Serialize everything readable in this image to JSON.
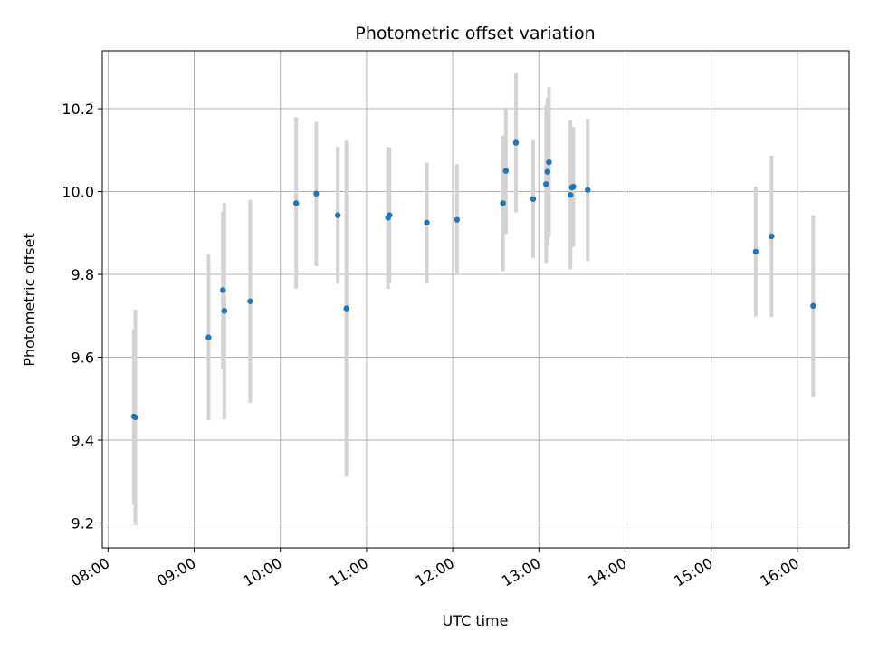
{
  "chart_data": {
    "type": "scatter",
    "title": "Photometric offset variation",
    "xlabel": "UTC time",
    "ylabel": "Photometric offset",
    "x_tick_labels": [
      "08:00",
      "09:00",
      "10:00",
      "11:00",
      "12:00",
      "13:00",
      "14:00",
      "15:00",
      "16:00"
    ],
    "y_tick_labels": [
      "9.2",
      "9.4",
      "9.6",
      "9.8",
      "10.0",
      "10.2"
    ],
    "xlim": [
      "07:56",
      "16:36"
    ],
    "ylim": [
      9.14,
      10.34
    ],
    "grid": true,
    "colors": {
      "marker": "#1f77b4",
      "errorbar": "#d3d3d3",
      "grid": "#b0b0b0"
    },
    "points": [
      {
        "x": "08:18",
        "y": 9.457,
        "ylo": 9.245,
        "yhi": 9.668
      },
      {
        "x": "08:19",
        "y": 9.455,
        "ylo": 9.195,
        "yhi": 9.715
      },
      {
        "x": "09:10",
        "y": 9.648,
        "ylo": 9.448,
        "yhi": 9.848
      },
      {
        "x": "09:20",
        "y": 9.762,
        "ylo": 9.57,
        "yhi": 9.952
      },
      {
        "x": "09:21",
        "y": 9.712,
        "ylo": 9.45,
        "yhi": 9.973
      },
      {
        "x": "09:39",
        "y": 9.735,
        "ylo": 9.49,
        "yhi": 9.98
      },
      {
        "x": "10:11",
        "y": 9.972,
        "ylo": 9.765,
        "yhi": 10.18
      },
      {
        "x": "10:25",
        "y": 9.995,
        "ylo": 9.82,
        "yhi": 10.168
      },
      {
        "x": "10:40",
        "y": 9.943,
        "ylo": 9.778,
        "yhi": 10.108
      },
      {
        "x": "10:46",
        "y": 9.718,
        "ylo": 9.312,
        "yhi": 10.123
      },
      {
        "x": "11:15",
        "y": 9.937,
        "ylo": 9.765,
        "yhi": 10.108
      },
      {
        "x": "11:16",
        "y": 9.943,
        "ylo": 9.78,
        "yhi": 10.106
      },
      {
        "x": "11:42",
        "y": 9.925,
        "ylo": 9.78,
        "yhi": 10.07
      },
      {
        "x": "12:03",
        "y": 9.932,
        "ylo": 9.8,
        "yhi": 10.066
      },
      {
        "x": "12:35",
        "y": 9.972,
        "ylo": 9.808,
        "yhi": 10.135
      },
      {
        "x": "12:37",
        "y": 10.05,
        "ylo": 9.897,
        "yhi": 10.203
      },
      {
        "x": "12:44",
        "y": 10.118,
        "ylo": 9.95,
        "yhi": 10.286
      },
      {
        "x": "12:56",
        "y": 9.982,
        "ylo": 9.84,
        "yhi": 10.124
      },
      {
        "x": "13:05",
        "y": 10.018,
        "ylo": 9.828,
        "yhi": 10.208
      },
      {
        "x": "13:06",
        "y": 10.048,
        "ylo": 9.87,
        "yhi": 10.226
      },
      {
        "x": "13:07",
        "y": 10.071,
        "ylo": 9.89,
        "yhi": 10.252
      },
      {
        "x": "13:22",
        "y": 9.992,
        "ylo": 9.812,
        "yhi": 10.172
      },
      {
        "x": "13:23",
        "y": 10.01,
        "ylo": 9.866,
        "yhi": 10.155
      },
      {
        "x": "13:24",
        "y": 10.012,
        "ylo": 9.868,
        "yhi": 10.156
      },
      {
        "x": "13:34",
        "y": 10.004,
        "ylo": 9.832,
        "yhi": 10.176
      },
      {
        "x": "15:31",
        "y": 9.855,
        "ylo": 9.698,
        "yhi": 10.012
      },
      {
        "x": "15:42",
        "y": 9.892,
        "ylo": 9.697,
        "yhi": 10.087
      },
      {
        "x": "16:11",
        "y": 9.724,
        "ylo": 9.505,
        "yhi": 9.943
      }
    ]
  }
}
